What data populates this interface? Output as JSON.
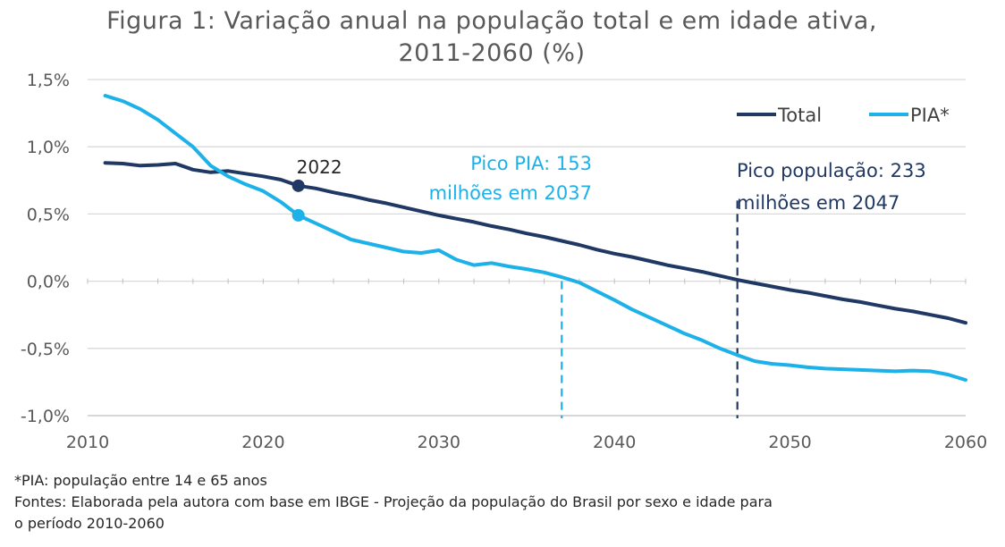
{
  "colors": {
    "total": "#203864",
    "pia": "#1CB1E8",
    "axis": "#BFBFBF",
    "grid": "#D9D9D9",
    "anno_pia": "#1CB1E8",
    "anno_total": "#203864"
  },
  "chart_data": {
    "type": "line",
    "title_line1": "Figura 1: Variação anual na população total e em idade ativa,",
    "title_line2": "2011-2060 (%)",
    "xlim": [
      2010,
      2060
    ],
    "ylim": [
      -1.0,
      1.5
    ],
    "x_ticks": [
      {
        "value": 2010,
        "label": "2010"
      },
      {
        "value": 2020,
        "label": "2020"
      },
      {
        "value": 2030,
        "label": "2030"
      },
      {
        "value": 2040,
        "label": "2040"
      },
      {
        "value": 2050,
        "label": "2050"
      },
      {
        "value": 2060,
        "label": "2060"
      }
    ],
    "y_ticks": [
      {
        "value": 1.5,
        "label": "1,5%"
      },
      {
        "value": 1.0,
        "label": "1,0%"
      },
      {
        "value": 0.5,
        "label": "0,5%"
      },
      {
        "value": 0.0,
        "label": "0,0%"
      },
      {
        "value": -0.5,
        "label": "-0,5%"
      },
      {
        "value": -1.0,
        "label": "-1,0%"
      }
    ],
    "series": [
      {
        "name": "Total",
        "key": "total",
        "x": [
          2011,
          2012,
          2013,
          2014,
          2015,
          2016,
          2017,
          2018,
          2019,
          2020,
          2021,
          2022,
          2023,
          2024,
          2025,
          2026,
          2027,
          2028,
          2029,
          2030,
          2031,
          2032,
          2033,
          2034,
          2035,
          2036,
          2037,
          2038,
          2039,
          2040,
          2041,
          2042,
          2043,
          2044,
          2045,
          2046,
          2047,
          2048,
          2049,
          2050,
          2051,
          2052,
          2053,
          2054,
          2055,
          2056,
          2057,
          2058,
          2059,
          2060
        ],
        "values": [
          0.88,
          0.875,
          0.86,
          0.865,
          0.875,
          0.83,
          0.81,
          0.82,
          0.8,
          0.78,
          0.755,
          0.71,
          0.69,
          0.66,
          0.635,
          0.605,
          0.58,
          0.55,
          0.52,
          0.49,
          0.465,
          0.44,
          0.41,
          0.385,
          0.355,
          0.33,
          0.3,
          0.27,
          0.235,
          0.205,
          0.18,
          0.15,
          0.12,
          0.095,
          0.07,
          0.04,
          0.01,
          -0.015,
          -0.04,
          -0.065,
          -0.085,
          -0.11,
          -0.135,
          -0.155,
          -0.18,
          -0.205,
          -0.225,
          -0.25,
          -0.275,
          -0.31
        ]
      },
      {
        "name": "PIA*",
        "key": "pia",
        "x": [
          2011,
          2012,
          2013,
          2014,
          2015,
          2016,
          2017,
          2018,
          2019,
          2020,
          2021,
          2022,
          2023,
          2024,
          2025,
          2026,
          2027,
          2028,
          2029,
          2030,
          2031,
          2032,
          2033,
          2034,
          2035,
          2036,
          2037,
          2038,
          2039,
          2040,
          2041,
          2042,
          2043,
          2044,
          2045,
          2046,
          2047,
          2048,
          2049,
          2050,
          2051,
          2052,
          2053,
          2054,
          2055,
          2056,
          2057,
          2058,
          2059,
          2060
        ],
        "values": [
          1.38,
          1.34,
          1.28,
          1.2,
          1.1,
          1.0,
          0.86,
          0.78,
          0.72,
          0.67,
          0.59,
          0.49,
          0.43,
          0.37,
          0.31,
          0.28,
          0.25,
          0.22,
          0.21,
          0.23,
          0.16,
          0.12,
          0.135,
          0.11,
          0.09,
          0.065,
          0.03,
          -0.01,
          -0.075,
          -0.14,
          -0.21,
          -0.27,
          -0.33,
          -0.39,
          -0.44,
          -0.5,
          -0.55,
          -0.595,
          -0.615,
          -0.625,
          -0.64,
          -0.65,
          -0.655,
          -0.66,
          -0.665,
          -0.67,
          -0.665,
          -0.67,
          -0.695,
          -0.735
        ]
      }
    ],
    "legend": {
      "position": "top-right",
      "items": [
        "Total",
        "PIA*"
      ]
    },
    "highlight_points": [
      {
        "series": "total",
        "x": 2022,
        "y": 0.71,
        "label": "2022"
      },
      {
        "series": "pia",
        "x": 2022,
        "y": 0.49,
        "label": ""
      }
    ],
    "vertical_markers": [
      {
        "x": 2037,
        "y_top": 0.0,
        "color_key": "pia",
        "label_lines": [
          "Pico PIA: 153",
          "milhões em 2037"
        ],
        "align": "right"
      },
      {
        "x": 2047,
        "y_top": 0.6,
        "color_key": "total",
        "label_lines": [
          "Pico população: 233",
          "milhões em 2047"
        ],
        "align": "left"
      }
    ]
  },
  "footnotes": {
    "line1": "*PIA: população entre 14 e 65 anos",
    "line2": "Fontes: Elaborada pela autora com base em IBGE - Projeção da população do Brasil por sexo e idade para",
    "line3": "o período 2010-2060"
  }
}
